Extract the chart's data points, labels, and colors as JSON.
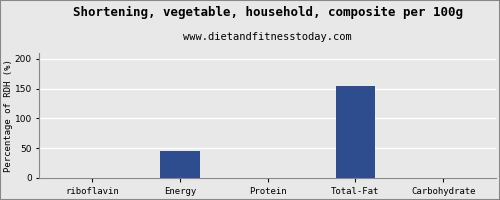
{
  "title": "Shortening, vegetable, household, composite per 100g",
  "subtitle": "www.dietandfitnesstoday.com",
  "categories": [
    "riboflavin",
    "Energy",
    "Protein",
    "Total-Fat",
    "Carbohydrate"
  ],
  "values": [
    0,
    45,
    0,
    155,
    0
  ],
  "bar_color": "#2e4d8e",
  "ylabel": "Percentage of RDH (%)",
  "ylim": [
    0,
    210
  ],
  "yticks": [
    0,
    50,
    100,
    150,
    200
  ],
  "background_color": "#e8e8e8",
  "plot_bg_color": "#e8e8e8",
  "title_fontsize": 9,
  "subtitle_fontsize": 7.5,
  "ylabel_fontsize": 6.5,
  "tick_fontsize": 6.5,
  "grid_color": "#ffffff",
  "border_color": "#888888"
}
